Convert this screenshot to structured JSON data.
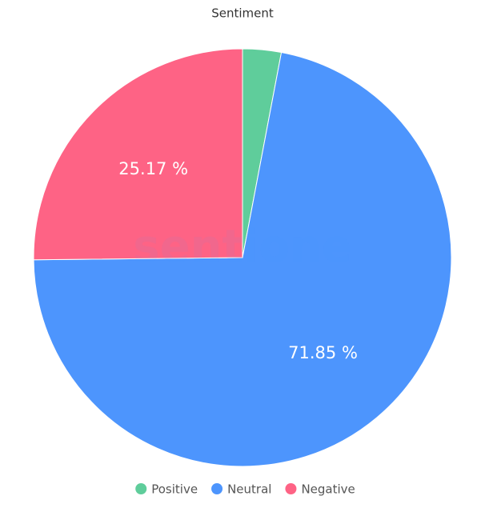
{
  "chart_data": {
    "type": "pie",
    "title": "Sentiment",
    "watermark": "sentione",
    "categories": [
      "Positive",
      "Neutral",
      "Negative"
    ],
    "values": [
      2.98,
      71.85,
      25.17
    ],
    "value_labels": [
      null,
      "71.85 %",
      "25.17 %"
    ],
    "colors": [
      "#5fcd9b",
      "#4d95fd",
      "#fe6385"
    ],
    "legend": "bottom"
  }
}
